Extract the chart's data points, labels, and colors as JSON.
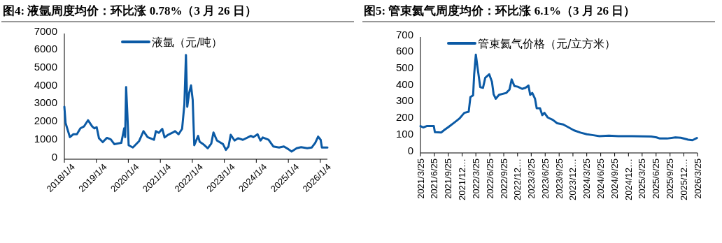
{
  "chart_data": [
    {
      "type": "line",
      "title": "图4:  液氩周度均价：环比涨 0.78%（3 月 26 日）",
      "legend": "top",
      "xlim": [
        "2018-01-04",
        "2026-03-26"
      ],
      "ylim": [
        0,
        7000
      ],
      "yticks": [
        0,
        1000,
        2000,
        3000,
        4000,
        5000,
        6000,
        7000
      ],
      "xticks": [
        {
          "value": "2018-01-04",
          "label": "2018/1/4"
        },
        {
          "value": "2019-01-04",
          "label": "2019/1/4"
        },
        {
          "value": "2020-01-04",
          "label": "2020/1/4"
        },
        {
          "value": "2021-01-04",
          "label": "2021/1/4"
        },
        {
          "value": "2022-01-04",
          "label": "2022/1/4"
        },
        {
          "value": "2023-01-04",
          "label": "2023/1/4"
        },
        {
          "value": "2024-01-04",
          "label": "2024/1/4"
        },
        {
          "value": "2025-01-04",
          "label": "2025/1/4"
        },
        {
          "value": "2026-01-04",
          "label": "2026/1/4"
        }
      ],
      "series": [
        {
          "name": "液氩（元/吨）",
          "color": "#0b5aa5",
          "x": [
            "2018-01-04",
            "2018-01-18",
            "2018-03-08",
            "2018-04-17",
            "2018-05-27",
            "2018-07-06",
            "2018-08-15",
            "2018-10-01",
            "2018-11-18",
            "2018-12-13",
            "2019-01-08",
            "2019-02-03",
            "2019-03-18",
            "2019-05-05",
            "2019-06-18",
            "2019-07-28",
            "2019-10-16",
            "2019-11-18",
            "2019-11-29",
            "2019-12-10",
            "2019-12-24",
            "2020-01-08",
            "2020-02-25",
            "2020-05-05",
            "2020-06-25",
            "2020-08-11",
            "2020-10-23",
            "2020-11-14",
            "2020-12-17",
            "2021-01-26",
            "2021-02-21",
            "2021-04-02",
            "2021-05-27",
            "2021-06-21",
            "2021-07-31",
            "2021-09-09",
            "2021-10-05",
            "2021-10-23",
            "2021-11-07",
            "2021-11-29",
            "2021-12-20",
            "2022-01-08",
            "2022-01-26",
            "2022-03-11",
            "2022-03-29",
            "2022-05-08",
            "2022-06-29",
            "2022-08-08",
            "2022-09-02",
            "2022-10-12",
            "2022-12-20",
            "2023-01-22",
            "2023-02-21",
            "2023-03-18",
            "2023-05-01",
            "2023-06-10",
            "2023-08-04",
            "2023-11-03",
            "2023-12-02",
            "2024-01-19",
            "2024-02-21",
            "2024-03-18",
            "2024-05-23",
            "2024-07-16",
            "2024-09-20",
            "2024-11-14",
            "2025-01-04",
            "2025-02-10",
            "2025-04-09",
            "2025-05-30",
            "2025-08-08",
            "2025-09-27",
            "2025-11-07",
            "2025-12-10",
            "2026-01-08",
            "2026-01-22",
            "2026-02-24",
            "2026-03-26"
          ],
          "values": [
            2920,
            2010,
            1230,
            1390,
            1390,
            1720,
            1820,
            2170,
            1820,
            1720,
            1780,
            1170,
            950,
            1190,
            1100,
            840,
            910,
            1720,
            1230,
            4020,
            2530,
            780,
            650,
            1000,
            1560,
            1230,
            1080,
            1560,
            1470,
            1690,
            1210,
            1360,
            1490,
            1560,
            1390,
            1690,
            3050,
            5800,
            2920,
            3700,
            4110,
            3310,
            780,
            1300,
            970,
            840,
            610,
            870,
            1490,
            1040,
            840,
            520,
            710,
            1360,
            1040,
            1170,
            1080,
            1300,
            1230,
            1390,
            1040,
            1210,
            1080,
            710,
            650,
            710,
            560,
            430,
            610,
            670,
            610,
            650,
            910,
            1260,
            1080,
            650,
            650,
            650
          ]
        }
      ]
    },
    {
      "type": "line",
      "title": "图5:  管束氦气周度均价：环比涨 6.1%（3 月 26 日）",
      "legend": "top",
      "xlim": [
        "2021-03-25",
        "2026-03-25"
      ],
      "ylim": [
        0,
        700
      ],
      "yticks": [
        0,
        100,
        200,
        300,
        400,
        500,
        600,
        700
      ],
      "xticks": [
        {
          "value": "2021-03-25",
          "label": "2021/3/25"
        },
        {
          "value": "2021-06-25",
          "label": "2021/6/25"
        },
        {
          "value": "2021-09-25",
          "label": "2021/9/25"
        },
        {
          "value": "2021-12-25",
          "label": "2021/12…"
        },
        {
          "value": "2022-03-25",
          "label": "2022/3/25"
        },
        {
          "value": "2022-06-25",
          "label": "2022/6/25"
        },
        {
          "value": "2022-09-25",
          "label": "2022/9/25"
        },
        {
          "value": "2022-12-25",
          "label": "2022/12…"
        },
        {
          "value": "2023-03-25",
          "label": "2023/3/25"
        },
        {
          "value": "2023-06-25",
          "label": "2023/6/25"
        },
        {
          "value": "2023-09-25",
          "label": "2023/9/25"
        },
        {
          "value": "2023-12-25",
          "label": "2023/12…"
        },
        {
          "value": "2024-03-25",
          "label": "2024/3/25"
        },
        {
          "value": "2024-06-25",
          "label": "2024/6/25"
        },
        {
          "value": "2024-09-25",
          "label": "2024/9/25"
        },
        {
          "value": "2024-12-25",
          "label": "2024/12…"
        },
        {
          "value": "2025-03-25",
          "label": "2025/3/25"
        },
        {
          "value": "2025-06-25",
          "label": "2025/6/25"
        },
        {
          "value": "2025-09-25",
          "label": "2025/9/25"
        },
        {
          "value": "2025-12-25",
          "label": "2025/12…"
        },
        {
          "value": "2026-03-25",
          "label": "2026/3/25"
        }
      ],
      "series": [
        {
          "name": "管束氦气价格（元/立方米）",
          "color": "#0b5aa5",
          "x": [
            "2021-03-25",
            "2021-04-12",
            "2021-05-05",
            "2021-06-21",
            "2021-06-28",
            "2021-08-08",
            "2021-08-30",
            "2021-09-28",
            "2021-11-07",
            "2021-12-06",
            "2022-01-08",
            "2022-02-06",
            "2022-02-17",
            "2022-03-07",
            "2022-03-14",
            "2022-03-25",
            "2022-04-05",
            "2022-04-23",
            "2022-05-11",
            "2022-05-26",
            "2022-06-21",
            "2022-07-09",
            "2022-07-20",
            "2022-08-03",
            "2022-08-25",
            "2022-10-11",
            "2022-11-02",
            "2022-11-16",
            "2022-12-04",
            "2022-12-26",
            "2023-01-24",
            "2023-02-15",
            "2023-03-07",
            "2023-03-18",
            "2023-04-01",
            "2023-04-19",
            "2023-04-30",
            "2023-05-22",
            "2023-06-06",
            "2023-06-20",
            "2023-07-12",
            "2023-08-14",
            "2023-09-12",
            "2023-10-22",
            "2023-11-27",
            "2023-12-30",
            "2024-02-12",
            "2024-03-25",
            "2024-04-30",
            "2024-06-17",
            "2024-08-18",
            "2024-10-19",
            "2025-01-18",
            "2025-03-21",
            "2025-05-23",
            "2025-06-28",
            "2025-07-20",
            "2025-09-05",
            "2025-10-30",
            "2025-12-05",
            "2026-01-22",
            "2026-02-20",
            "2026-03-21"
          ],
          "values": [
            162,
            154,
            162,
            162,
            125,
            123,
            139,
            158,
            186,
            207,
            242,
            249,
            337,
            348,
            475,
            594,
            517,
            397,
            393,
            454,
            475,
            430,
            355,
            327,
            351,
            362,
            383,
            444,
            404,
            400,
            387,
            393,
            407,
            351,
            362,
            327,
            270,
            270,
            228,
            242,
            214,
            200,
            179,
            172,
            154,
            137,
            123,
            113,
            108,
            101,
            104,
            101,
            101,
            100,
            99,
            94,
            87,
            87,
            94,
            92,
            80,
            77,
            90
          ]
        }
      ]
    }
  ]
}
